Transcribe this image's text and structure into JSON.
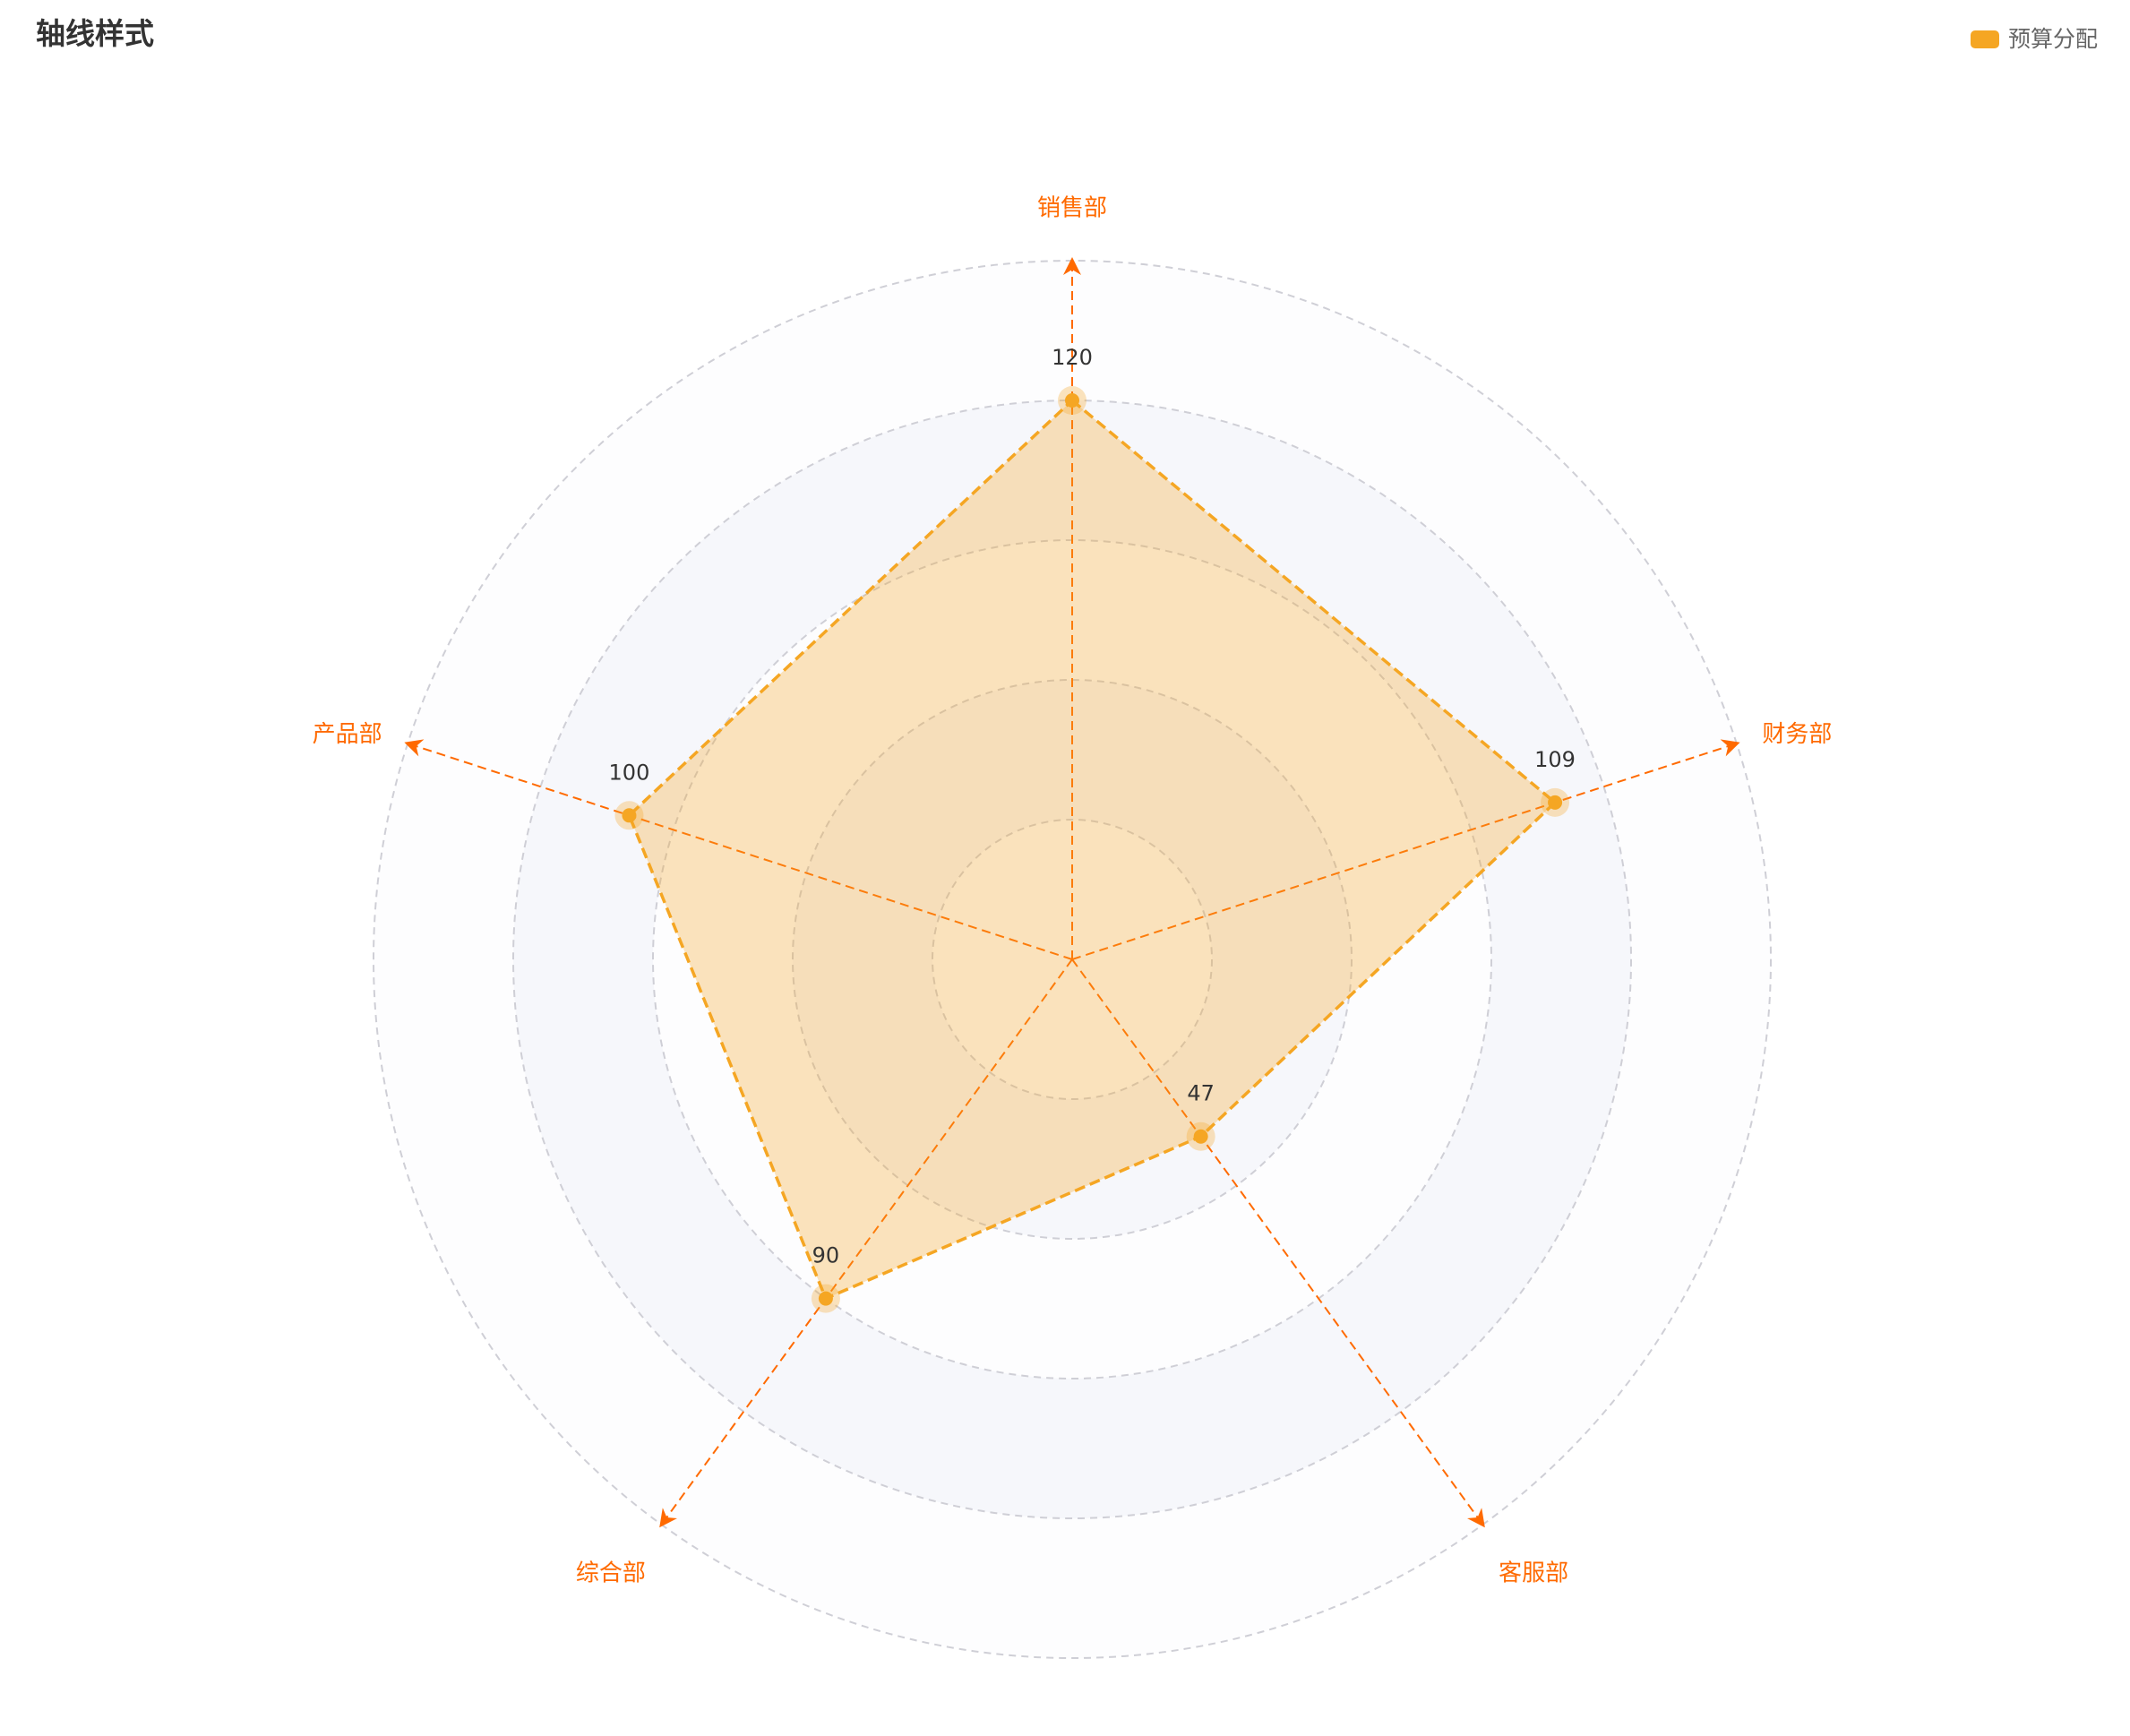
{
  "chart_data": {
    "type": "radar",
    "title": "轴线样式",
    "indicators": [
      {
        "name": "销售部",
        "max": 150
      },
      {
        "name": "财务部",
        "max": 150
      },
      {
        "name": "客服部",
        "max": 150
      },
      {
        "name": "综合部",
        "max": 150
      },
      {
        "name": "产品部",
        "max": 150
      }
    ],
    "rings": 5,
    "series": [
      {
        "name": "预算分配",
        "values": [
          120,
          109,
          47,
          90,
          100
        ],
        "labels": [
          "120",
          "109",
          "47",
          "90",
          "100"
        ]
      }
    ],
    "legend_position": "top-right"
  },
  "colors": {
    "series": "#f5a623",
    "axis": "#ff6a00",
    "split_line": "#cfcfd6",
    "area_band": "#f6f7fb"
  }
}
